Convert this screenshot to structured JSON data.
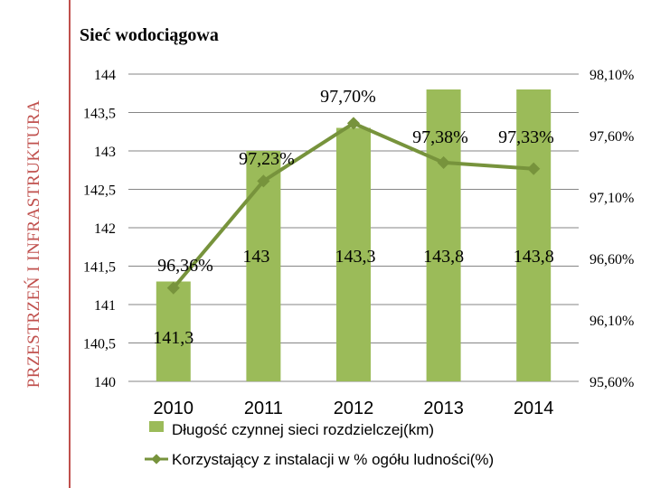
{
  "side_label": "PRZESTRZEŃ I INFRASTRUKTURA",
  "chart_data": {
    "type": "bar+line",
    "title": "Sieć wodociągowa",
    "categories": [
      "2010",
      "2011",
      "2012",
      "2013",
      "2014"
    ],
    "series": [
      {
        "name": "Długość czynnej sieci rozdzielczej(km)",
        "kind": "bar",
        "axis": "left",
        "values": [
          141.3,
          143,
          143.3,
          143.8,
          143.8
        ],
        "labels": [
          "141,3",
          "143",
          "143,3",
          "143,8",
          "143,8"
        ],
        "color": "#9bbb59"
      },
      {
        "name": "Korzystający z instalacji w % ogółu ludności(%)",
        "kind": "line",
        "axis": "right",
        "values": [
          96.36,
          97.23,
          97.7,
          97.38,
          97.33
        ],
        "labels": [
          "96,36%",
          "97,23%",
          "97,70%",
          "97,38%",
          "97,33%"
        ],
        "color": "#77933c"
      }
    ],
    "y_left": {
      "lim": [
        140,
        144
      ],
      "ticks": [
        "140",
        "140,5",
        "141",
        "141,5",
        "142",
        "142,5",
        "143",
        "143,5",
        "144"
      ]
    },
    "y_right": {
      "lim": [
        95.6,
        98.1
      ],
      "ticks": [
        "95,60%",
        "96,10%",
        "96,60%",
        "97,10%",
        "97,60%",
        "98,10%"
      ]
    },
    "grid": true,
    "legend": "bottom"
  }
}
